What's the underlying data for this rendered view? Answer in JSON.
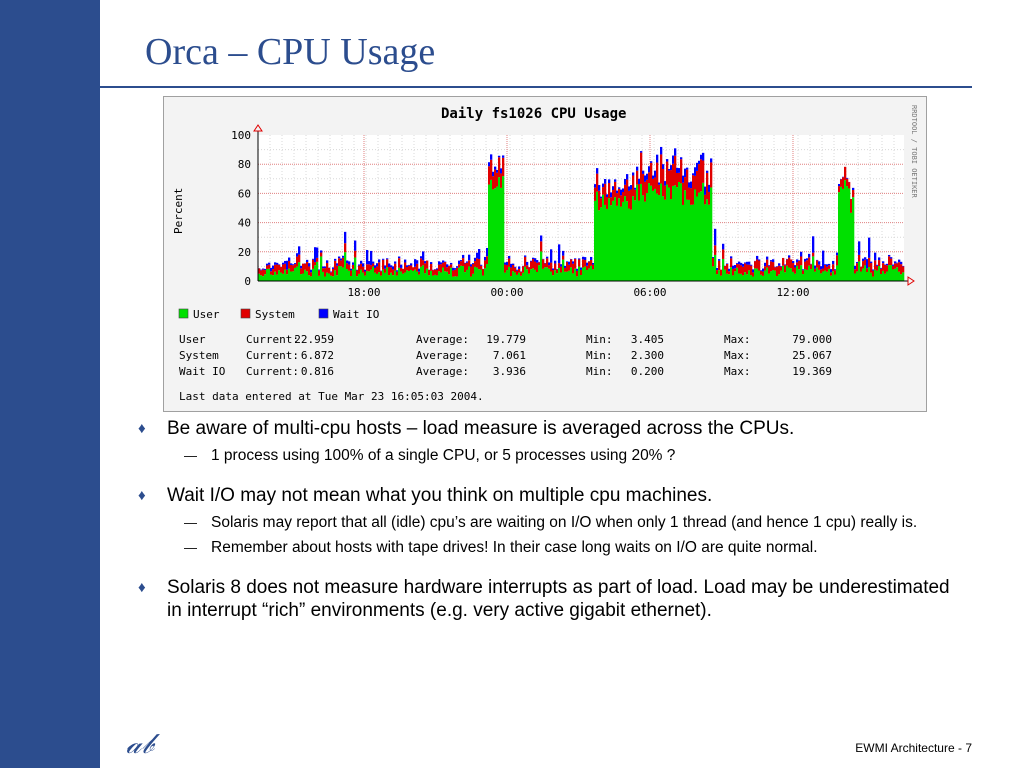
{
  "slide": {
    "title": "Orca – CPU Usage",
    "logo": "𝒶𝒷",
    "footer": {
      "label": "EWMI Architecture",
      "separator": " - ",
      "page": "7"
    }
  },
  "colors": {
    "accent": "#2c4d8e",
    "user": "#00e000",
    "system": "#e00000",
    "wait_io": "#0000ff"
  },
  "chart_data": {
    "type": "area",
    "title": "Daily fs1026 CPU Usage",
    "ylabel": "Percent",
    "side_label": "RRDTOOL / TOBI OETIKER",
    "ylim": [
      0,
      100
    ],
    "yticks": [
      "0",
      "20",
      "40",
      "60",
      "80",
      "100"
    ],
    "xticks": [
      "18:00",
      "00:00",
      "06:00",
      "12:00"
    ],
    "grid": true,
    "stacked": true,
    "legend": [
      {
        "label": "User",
        "color": "#00e000"
      },
      {
        "label": "System",
        "color": "#e00000"
      },
      {
        "label": "Wait IO",
        "color": "#0000ff"
      }
    ],
    "series": [
      {
        "name": "User"
      },
      {
        "name": "System"
      },
      {
        "name": "Wait IO"
      }
    ],
    "stats": {
      "header": [
        "",
        "Current:",
        "Average:",
        "Min:",
        "Max:"
      ],
      "rows": [
        {
          "name": "User",
          "current": "22.959",
          "average": "19.779",
          "min": "3.405",
          "max": "79.000"
        },
        {
          "name": "System",
          "current": "6.872",
          "average": "7.061",
          "min": "2.300",
          "max": "25.067"
        },
        {
          "name": "Wait IO",
          "current": "0.816",
          "average": "3.936",
          "min": "0.200",
          "max": "19.369"
        }
      ],
      "labels": {
        "current": "Current:",
        "average": "Average:",
        "min": "Min:",
        "max": "Max:"
      }
    },
    "last_entry": "Last data entered at Tue Mar 23 16:05:03 2004."
  },
  "bullets": [
    {
      "text": "Be aware of multi-cpu hosts –  load measure is averaged across the CPUs.",
      "subs": [
        "1 process using 100% of a single CPU, or 5 processes using 20% ?"
      ]
    },
    {
      "text": "Wait I/O may not mean what you think on multiple cpu machines.",
      "subs": [
        "Solaris may report that all (idle) cpu’s are waiting on I/O when only 1 thread (and hence 1 cpu) really is.",
        "Remember about hosts with tape drives! In their case long waits on I/O are quite normal."
      ]
    },
    {
      "text": "Solaris 8 does not measure hardware interrupts as part of load. Load may be underestimated in interrupt “rich” environments (e.g. very active gigabit ethernet).",
      "subs": []
    }
  ],
  "markers": {
    "bullet": "♦",
    "sub": "—"
  }
}
